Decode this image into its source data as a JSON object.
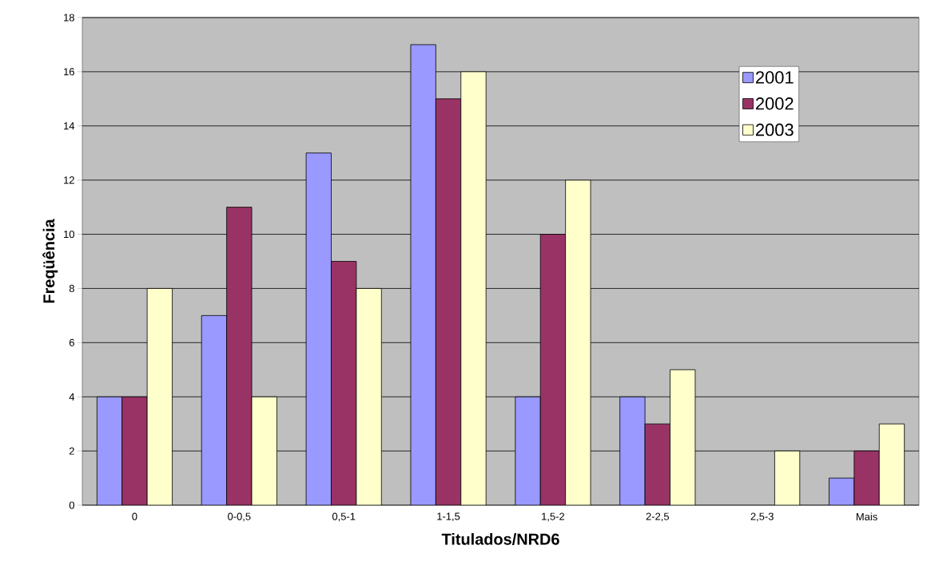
{
  "chart_data": {
    "type": "bar",
    "xlabel": "Titulados/NRD6",
    "ylabel": "Freqüência",
    "categories": [
      "0",
      "0-0,5",
      "0,5-1",
      "1-1,5",
      "1,5-2",
      "2-2,5",
      "2,5-3",
      "Mais"
    ],
    "series": [
      {
        "name": "2001",
        "color": "#9999ff",
        "values": [
          4,
          7,
          13,
          17,
          4,
          4,
          null,
          1
        ]
      },
      {
        "name": "2002",
        "color": "#993366",
        "values": [
          4,
          11,
          9,
          15,
          10,
          3,
          null,
          2
        ]
      },
      {
        "name": "2003",
        "color": "#ffffcc",
        "values": [
          8,
          4,
          8,
          16,
          12,
          5,
          2,
          3
        ]
      }
    ],
    "ylim": [
      0,
      18
    ],
    "yticks": [
      0,
      2,
      4,
      6,
      8,
      10,
      12,
      14,
      16,
      18
    ],
    "grid": "y",
    "legend": "top right"
  }
}
